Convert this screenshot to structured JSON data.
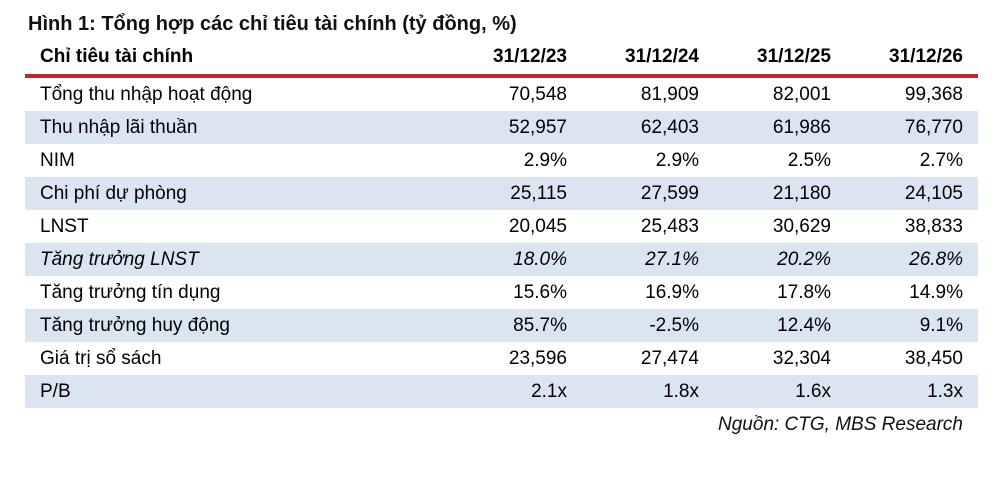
{
  "title": "Hình 1: Tổng hợp các chỉ tiêu tài chính (tỷ đồng, %)",
  "table": {
    "header": [
      "Chỉ tiêu tài chính",
      "31/12/23",
      "31/12/24",
      "31/12/25",
      "31/12/26"
    ],
    "rows": [
      {
        "label": "Tổng thu nhập hoạt động",
        "values": [
          "70,548",
          "81,909",
          "82,001",
          "99,368"
        ],
        "italic": false
      },
      {
        "label": "Thu nhập lãi thuần",
        "values": [
          "52,957",
          "62,403",
          "61,986",
          "76,770"
        ],
        "italic": false
      },
      {
        "label": "NIM",
        "values": [
          "2.9%",
          "2.9%",
          "2.5%",
          "2.7%"
        ],
        "italic": false
      },
      {
        "label": "Chi phí dự phòng",
        "values": [
          "25,115",
          "27,599",
          "21,180",
          "24,105"
        ],
        "italic": false
      },
      {
        "label": "LNST",
        "values": [
          "20,045",
          "25,483",
          "30,629",
          "38,833"
        ],
        "italic": false
      },
      {
        "label": "Tăng trưởng LNST",
        "values": [
          "18.0%",
          "27.1%",
          "20.2%",
          "26.8%"
        ],
        "italic": true
      },
      {
        "label": "Tăng trưởng tín dụng",
        "values": [
          "15.6%",
          "16.9%",
          "17.8%",
          "14.9%"
        ],
        "italic": false
      },
      {
        "label": "Tăng trưởng huy động",
        "values": [
          "85.7%",
          "-2.5%",
          "12.4%",
          "9.1%"
        ],
        "italic": false
      },
      {
        "label": "Giá trị sổ sách",
        "values": [
          "23,596",
          "27,474",
          "32,304",
          "38,450"
        ],
        "italic": false
      },
      {
        "label": "P/B",
        "values": [
          "2.1x",
          "1.8x",
          "1.6x",
          "1.3x"
        ],
        "italic": false
      }
    ],
    "source": "Nguồn: CTG, MBS Research"
  },
  "colors": {
    "accent_red": "#c0272c",
    "row_alt_blue": "#dbe5f1",
    "text": "#111111"
  }
}
